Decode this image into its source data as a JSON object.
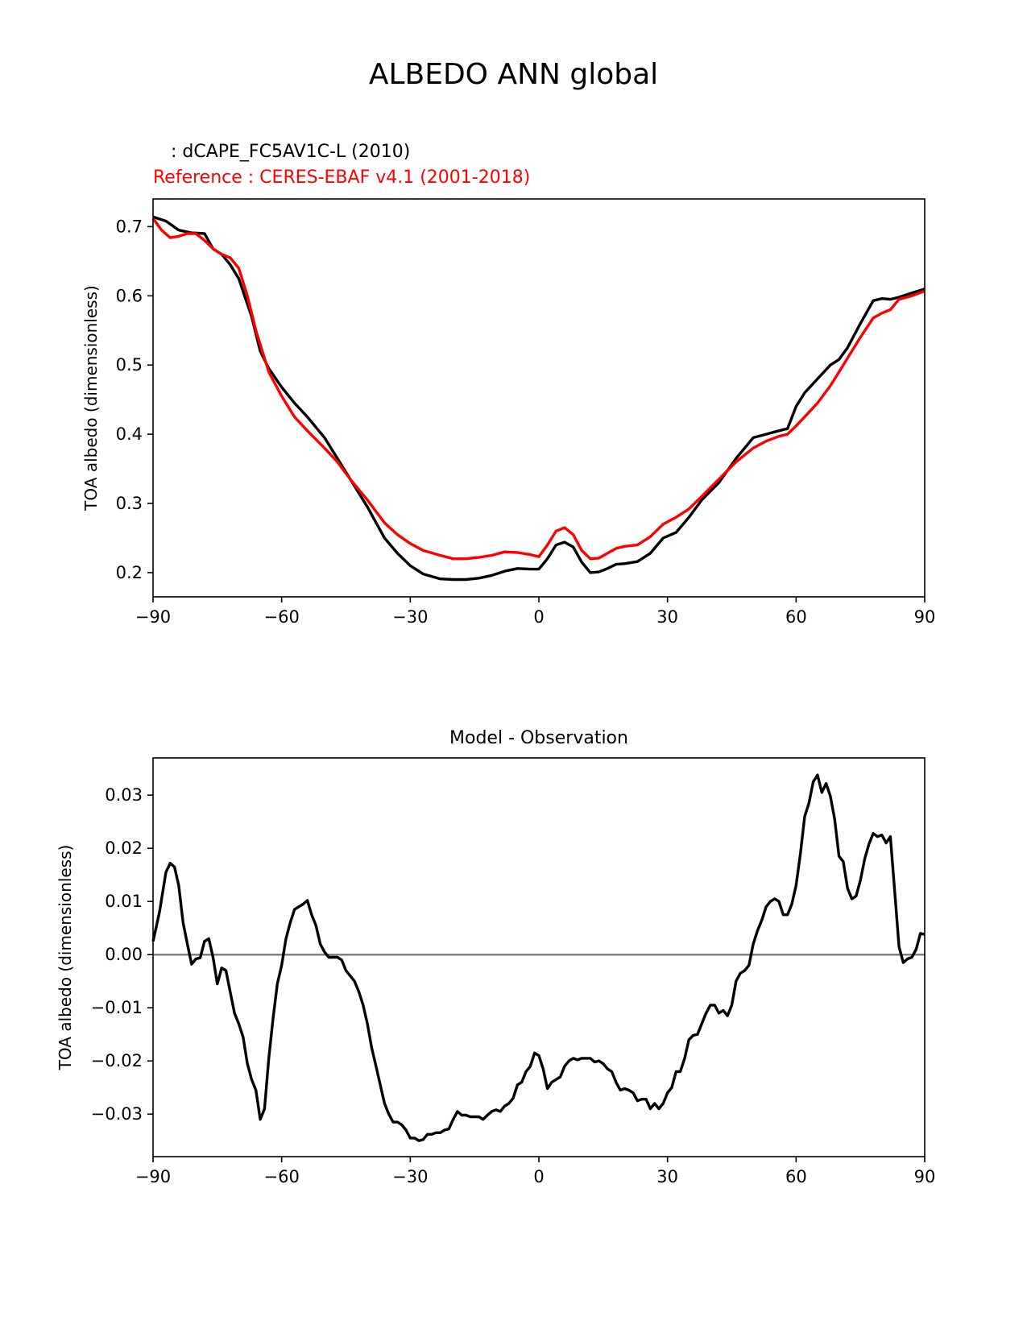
{
  "figure": {
    "title": "ALBEDO ANN global"
  },
  "chart_data": [
    {
      "type": "line",
      "subtitle_test": "  : dCAPE_FC5AV1C-L (2010)",
      "subtitle_reference": "Reference : CERES-EBAF v4.1 (2001-2018)",
      "xlabel": "",
      "ylabel": "TOA albedo (dimensionless)",
      "xlim": [
        -90,
        90
      ],
      "ylim": [
        0.165,
        0.74
      ],
      "xticks": [
        -90,
        -60,
        -30,
        0,
        30,
        60,
        90
      ],
      "xtick_labels": [
        "−90",
        "−60",
        "−30",
        "0",
        "30",
        "60",
        "90"
      ],
      "yticks": [
        0.2,
        0.3,
        0.4,
        0.5,
        0.6,
        0.7
      ],
      "ytick_labels": [
        "0.2",
        "0.3",
        "0.4",
        "0.5",
        "0.6",
        "0.7"
      ],
      "series": [
        {
          "name": "test",
          "color": "#000000",
          "x": [
            -90,
            -87,
            -84,
            -81,
            -78,
            -76,
            -74,
            -72,
            -70,
            -67,
            -65,
            -63,
            -60,
            -57,
            -54,
            -50,
            -47,
            -44,
            -40,
            -36,
            -33,
            -30,
            -27,
            -23,
            -20,
            -17,
            -14,
            -11,
            -8,
            -5,
            -2,
            0,
            2,
            4,
            6,
            8,
            10,
            12,
            14,
            16,
            18,
            20,
            23,
            26,
            29,
            32,
            35,
            38,
            42,
            46,
            50,
            53,
            56,
            58,
            60,
            62,
            65,
            68,
            70,
            72,
            75,
            78,
            80,
            82,
            84,
            87,
            90
          ],
          "values": [
            0.714,
            0.708,
            0.695,
            0.691,
            0.69,
            0.668,
            0.66,
            0.645,
            0.625,
            0.57,
            0.52,
            0.495,
            0.468,
            0.445,
            0.425,
            0.395,
            0.365,
            0.335,
            0.295,
            0.25,
            0.228,
            0.21,
            0.198,
            0.191,
            0.19,
            0.19,
            0.192,
            0.196,
            0.202,
            0.206,
            0.205,
            0.205,
            0.22,
            0.24,
            0.244,
            0.237,
            0.215,
            0.2,
            0.201,
            0.206,
            0.212,
            0.213,
            0.216,
            0.228,
            0.25,
            0.258,
            0.28,
            0.305,
            0.33,
            0.365,
            0.395,
            0.4,
            0.405,
            0.408,
            0.44,
            0.46,
            0.48,
            0.5,
            0.508,
            0.525,
            0.56,
            0.593,
            0.596,
            0.595,
            0.598,
            0.604,
            0.61
          ]
        },
        {
          "name": "reference",
          "color": "#ff0000",
          "x": [
            -90,
            -88,
            -86,
            -84,
            -82,
            -80,
            -78,
            -76,
            -74,
            -72,
            -70,
            -68,
            -66,
            -63,
            -60,
            -57,
            -54,
            -50,
            -47,
            -44,
            -40,
            -36,
            -33,
            -30,
            -27,
            -23,
            -20,
            -17,
            -14,
            -11,
            -8,
            -5,
            -2,
            0,
            2,
            4,
            6,
            8,
            10,
            12,
            14,
            16,
            18,
            20,
            23,
            26,
            29,
            32,
            35,
            38,
            42,
            46,
            50,
            53,
            56,
            58,
            60,
            62,
            65,
            68,
            70,
            72,
            75,
            78,
            80,
            82,
            84,
            87,
            90
          ],
          "values": [
            0.712,
            0.695,
            0.684,
            0.686,
            0.69,
            0.69,
            0.68,
            0.668,
            0.66,
            0.655,
            0.64,
            0.6,
            0.55,
            0.49,
            0.455,
            0.425,
            0.405,
            0.38,
            0.36,
            0.335,
            0.305,
            0.272,
            0.255,
            0.242,
            0.232,
            0.225,
            0.22,
            0.22,
            0.222,
            0.225,
            0.23,
            0.229,
            0.226,
            0.223,
            0.24,
            0.26,
            0.265,
            0.255,
            0.232,
            0.22,
            0.221,
            0.228,
            0.235,
            0.238,
            0.24,
            0.252,
            0.27,
            0.28,
            0.292,
            0.31,
            0.335,
            0.36,
            0.38,
            0.39,
            0.397,
            0.4,
            0.412,
            0.425,
            0.445,
            0.47,
            0.49,
            0.51,
            0.54,
            0.568,
            0.575,
            0.58,
            0.595,
            0.6,
            0.607
          ]
        }
      ]
    },
    {
      "type": "line",
      "title": "Model - Observation",
      "xlabel": "",
      "ylabel": "TOA albedo (dimensionless)",
      "xlim": [
        -90,
        90
      ],
      "ylim": [
        -0.038,
        0.037
      ],
      "xticks": [
        -90,
        -60,
        -30,
        0,
        30,
        60,
        90
      ],
      "xtick_labels": [
        "−90",
        "−60",
        "−30",
        "0",
        "30",
        "60",
        "90"
      ],
      "yticks": [
        -0.03,
        -0.02,
        -0.01,
        0.0,
        0.01,
        0.02,
        0.03
      ],
      "ytick_labels": [
        "−0.03",
        "−0.02",
        "−0.01",
        "0.00",
        "0.01",
        "0.02",
        "0.03"
      ],
      "zero_line": 0.0,
      "series": [
        {
          "name": "difference",
          "color": "#000000",
          "x": [
            -90,
            -88.5,
            -87,
            -86,
            -85,
            -84,
            -83,
            -82,
            -81,
            -80,
            -79,
            -78,
            -77,
            -76,
            -75,
            -74,
            -73,
            -72,
            -71,
            -70,
            -69,
            -68,
            -67,
            -66,
            -65,
            -64,
            -63,
            -62,
            -61,
            -60,
            -59,
            -58,
            -57,
            -56,
            -55,
            -54,
            -53,
            -52,
            -51,
            -50,
            -49,
            -48,
            -47,
            -46,
            -45,
            -44,
            -43,
            -42,
            -41,
            -40,
            -39,
            -38,
            -37,
            -36,
            -35,
            -34,
            -33,
            -32,
            -31,
            -30,
            -29,
            -28,
            -27,
            -26,
            -25,
            -24,
            -23,
            -22,
            -21,
            -20,
            -19,
            -18,
            -17,
            -16,
            -15,
            -14,
            -13,
            -12,
            -11,
            -10,
            -9,
            -8,
            -7,
            -6,
            -5,
            -4,
            -3,
            -2,
            -1,
            0,
            1,
            2,
            3,
            4,
            5,
            6,
            7,
            8,
            9,
            10,
            11,
            12,
            13,
            14,
            15,
            16,
            17,
            18,
            19,
            20,
            21,
            22,
            23,
            24,
            25,
            26,
            27,
            28,
            29,
            30,
            31,
            32,
            33,
            34,
            35,
            36,
            37,
            38,
            39,
            40,
            41,
            42,
            43,
            44,
            45,
            46,
            47,
            48,
            49,
            50,
            51,
            52,
            53,
            54,
            55,
            56,
            57,
            58,
            59,
            60,
            61,
            62,
            63,
            64,
            65,
            66,
            67,
            68,
            69,
            70,
            71,
            72,
            73,
            74,
            75,
            76,
            77,
            78,
            79,
            80,
            81,
            82,
            83,
            84,
            85,
            86,
            87,
            88,
            89,
            90
          ],
          "values": [
            0.0025,
            0.008,
            0.0155,
            0.0172,
            0.0165,
            0.013,
            0.006,
            0.002,
            -0.0018,
            -0.0008,
            -0.0006,
            0.0025,
            0.003,
            -0.0005,
            -0.0055,
            -0.0025,
            -0.003,
            -0.007,
            -0.011,
            -0.013,
            -0.0155,
            -0.0205,
            -0.0235,
            -0.0255,
            -0.031,
            -0.029,
            -0.0195,
            -0.012,
            -0.0055,
            -0.002,
            0.003,
            0.006,
            0.0085,
            0.009,
            0.0095,
            0.0102,
            0.0075,
            0.0055,
            0.002,
            0.0005,
            -0.0005,
            -0.0005,
            -0.0005,
            -0.001,
            -0.003,
            -0.004,
            -0.005,
            -0.007,
            -0.0095,
            -0.013,
            -0.0175,
            -0.021,
            -0.0245,
            -0.028,
            -0.03,
            -0.0315,
            -0.0315,
            -0.032,
            -0.033,
            -0.0345,
            -0.0345,
            -0.035,
            -0.0348,
            -0.0338,
            -0.0338,
            -0.0335,
            -0.0335,
            -0.033,
            -0.0328,
            -0.031,
            -0.0295,
            -0.0302,
            -0.0302,
            -0.0305,
            -0.0305,
            -0.0305,
            -0.031,
            -0.0302,
            -0.0295,
            -0.0292,
            -0.0295,
            -0.0285,
            -0.028,
            -0.027,
            -0.0245,
            -0.024,
            -0.022,
            -0.021,
            -0.0185,
            -0.019,
            -0.0215,
            -0.0252,
            -0.024,
            -0.0235,
            -0.023,
            -0.021,
            -0.02,
            -0.0195,
            -0.0198,
            -0.0195,
            -0.0195,
            -0.0195,
            -0.0202,
            -0.02,
            -0.0205,
            -0.0215,
            -0.022,
            -0.024,
            -0.0255,
            -0.0252,
            -0.0255,
            -0.026,
            -0.0275,
            -0.0272,
            -0.0272,
            -0.029,
            -0.028,
            -0.029,
            -0.028,
            -0.026,
            -0.025,
            -0.022,
            -0.022,
            -0.0195,
            -0.016,
            -0.0152,
            -0.015,
            -0.013,
            -0.011,
            -0.0095,
            -0.0095,
            -0.011,
            -0.0105,
            -0.0115,
            -0.0095,
            -0.005,
            -0.0035,
            -0.003,
            -0.002,
            0.002,
            0.0045,
            0.0065,
            0.009,
            0.01,
            0.0105,
            0.01,
            0.0075,
            0.0075,
            0.0095,
            0.013,
            0.019,
            0.026,
            0.0285,
            0.0325,
            0.0338,
            0.0305,
            0.0322,
            0.0298,
            0.0255,
            0.0185,
            0.0175,
            0.0125,
            0.0105,
            0.011,
            0.014,
            0.018,
            0.0208,
            0.0228,
            0.0222,
            0.0225,
            0.021,
            0.0222,
            0.012,
            0.0015,
            -0.0015,
            -0.0008,
            -0.0005,
            0.001,
            0.004,
            0.0038
          ]
        }
      ]
    }
  ]
}
